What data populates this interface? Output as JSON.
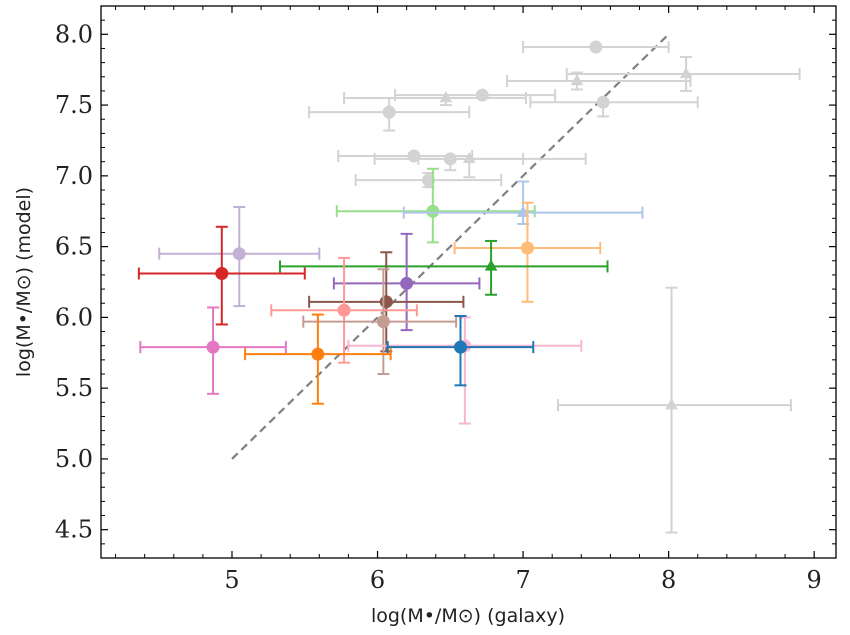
{
  "chart_data": {
    "type": "scatter",
    "title": "",
    "xlabel": "log(M•/M⊙) (galaxy)",
    "ylabel": "log(M•/M⊙) (model)",
    "xlim": [
      4.1,
      9.15
    ],
    "ylim": [
      4.3,
      8.2
    ],
    "x_ticks": [
      "5",
      "6",
      "7",
      "8",
      "9"
    ],
    "y_ticks": [
      "4.5",
      "5.0",
      "5.5",
      "6.0",
      "6.5",
      "7.0",
      "7.5",
      "8.0"
    ],
    "reference_line": {
      "style": "dashed",
      "color": "#808080",
      "x": [
        5.0,
        8.0
      ],
      "y": [
        5.0,
        8.0
      ]
    },
    "gray_color": "#d3d3d3",
    "series": [
      {
        "name": "gray-1",
        "group": "gray",
        "marker": "circle",
        "x": 7.5,
        "y": 7.91,
        "xerr": [
          0.5,
          0.5
        ],
        "yerr": [
          0.0,
          0.0
        ]
      },
      {
        "name": "gray-2",
        "group": "gray",
        "marker": "triangle",
        "x": 8.12,
        "y": 7.72,
        "xerr": [
          0.82,
          0.78
        ],
        "yerr": [
          0.12,
          0.12
        ]
      },
      {
        "name": "gray-3",
        "group": "gray",
        "marker": "triangle",
        "x": 7.37,
        "y": 7.67,
        "xerr": [
          0.48,
          0.78
        ],
        "yerr": [
          0.06,
          0.06
        ]
      },
      {
        "name": "gray-4",
        "group": "gray",
        "marker": "circle",
        "x": 6.72,
        "y": 7.57,
        "xerr": [
          0.6,
          0.5
        ],
        "yerr": [
          0.0,
          0.0
        ]
      },
      {
        "name": "gray-5",
        "group": "gray",
        "marker": "triangle",
        "x": 6.47,
        "y": 7.55,
        "xerr": [
          0.7,
          0.55
        ],
        "yerr": [
          0.05,
          0.0
        ]
      },
      {
        "name": "gray-6",
        "group": "gray",
        "marker": "circle",
        "x": 7.55,
        "y": 7.52,
        "xerr": [
          0.5,
          0.65
        ],
        "yerr": [
          0.1,
          0.0
        ]
      },
      {
        "name": "gray-7",
        "group": "gray",
        "marker": "circle",
        "x": 6.08,
        "y": 7.45,
        "xerr": [
          0.55,
          0.55
        ],
        "yerr": [
          0.13,
          0.1
        ]
      },
      {
        "name": "gray-8",
        "group": "gray",
        "marker": "circle",
        "x": 6.25,
        "y": 7.14,
        "xerr": [
          0.52,
          0.4
        ],
        "yerr": [
          0.0,
          0.0
        ]
      },
      {
        "name": "gray-9",
        "group": "gray",
        "marker": "circle",
        "x": 6.5,
        "y": 7.12,
        "xerr": [
          0.52,
          0.5
        ],
        "yerr": [
          0.08,
          0.0
        ]
      },
      {
        "name": "gray-10",
        "group": "gray",
        "marker": "triangle",
        "x": 6.63,
        "y": 7.12,
        "xerr": [
          0.35,
          0.8
        ],
        "yerr": [
          0.13,
          0.0
        ]
      },
      {
        "name": "gray-11",
        "group": "gray",
        "marker": "circle",
        "x": 6.35,
        "y": 6.97,
        "xerr": [
          0.5,
          0.5
        ],
        "yerr": [
          0.05,
          0.05
        ]
      },
      {
        "name": "gray-12",
        "group": "gray",
        "marker": "triangle",
        "x": 8.02,
        "y": 5.38,
        "xerr": [
          0.78,
          0.82
        ],
        "yerr": [
          0.9,
          0.83
        ]
      },
      {
        "name": "light-green",
        "color": "#98df8a",
        "marker": "circle",
        "x": 6.38,
        "y": 6.75,
        "xerr": [
          0.66,
          0.7
        ],
        "yerr": [
          0.22,
          0.3
        ]
      },
      {
        "name": "light-blue",
        "color": "#aec7e8",
        "marker": "triangle",
        "x": 7.0,
        "y": 6.74,
        "xerr": [
          0.82,
          0.82
        ],
        "yerr": [
          0.08,
          0.22
        ]
      },
      {
        "name": "light-orange",
        "color": "#ffbb78",
        "marker": "circle",
        "x": 7.03,
        "y": 6.49,
        "xerr": [
          0.5,
          0.5
        ],
        "yerr": [
          0.38,
          0.32
        ]
      },
      {
        "name": "lavender",
        "color": "#c5b0d5",
        "marker": "circle",
        "x": 5.05,
        "y": 6.45,
        "xerr": [
          0.55,
          0.55
        ],
        "yerr": [
          0.37,
          0.33
        ]
      },
      {
        "name": "green",
        "color": "#2ca02c",
        "marker": "triangle",
        "x": 6.78,
        "y": 6.36,
        "xerr": [
          1.45,
          0.8
        ],
        "yerr": [
          0.2,
          0.18
        ]
      },
      {
        "name": "red",
        "color": "#d62728",
        "marker": "circle",
        "x": 4.93,
        "y": 6.31,
        "xerr": [
          0.57,
          0.57
        ],
        "yerr": [
          0.36,
          0.33
        ]
      },
      {
        "name": "purple",
        "color": "#9467bd",
        "marker": "circle",
        "x": 6.2,
        "y": 6.24,
        "xerr": [
          0.5,
          0.5
        ],
        "yerr": [
          0.33,
          0.35
        ]
      },
      {
        "name": "brown",
        "color": "#8c564b",
        "marker": "circle",
        "x": 6.06,
        "y": 6.11,
        "xerr": [
          0.53,
          0.53
        ],
        "yerr": [
          0.35,
          0.35
        ]
      },
      {
        "name": "salmon",
        "color": "#ff9896",
        "marker": "circle",
        "x": 5.77,
        "y": 6.05,
        "xerr": [
          0.5,
          0.5
        ],
        "yerr": [
          0.37,
          0.37
        ]
      },
      {
        "name": "tan",
        "color": "#c49c94",
        "marker": "circle",
        "x": 6.04,
        "y": 5.97,
        "xerr": [
          0.55,
          0.5
        ],
        "yerr": [
          0.37,
          0.37
        ]
      },
      {
        "name": "pink",
        "color": "#f7b6d2",
        "marker": "circle",
        "x": 6.6,
        "y": 5.8,
        "xerr": [
          0.8,
          0.8
        ],
        "yerr": [
          0.55,
          0.2
        ]
      },
      {
        "name": "blue",
        "color": "#1f77b4",
        "marker": "circle",
        "x": 6.57,
        "y": 5.79,
        "xerr": [
          0.5,
          0.5
        ],
        "yerr": [
          0.27,
          0.22
        ]
      },
      {
        "name": "magenta",
        "color": "#e377c2",
        "marker": "circle",
        "x": 4.87,
        "y": 5.79,
        "xerr": [
          0.5,
          0.5
        ],
        "yerr": [
          0.33,
          0.28
        ]
      },
      {
        "name": "orange",
        "color": "#ff7f0e",
        "marker": "circle",
        "x": 5.59,
        "y": 5.74,
        "xerr": [
          0.5,
          0.5
        ],
        "yerr": [
          0.35,
          0.28
        ]
      }
    ]
  }
}
